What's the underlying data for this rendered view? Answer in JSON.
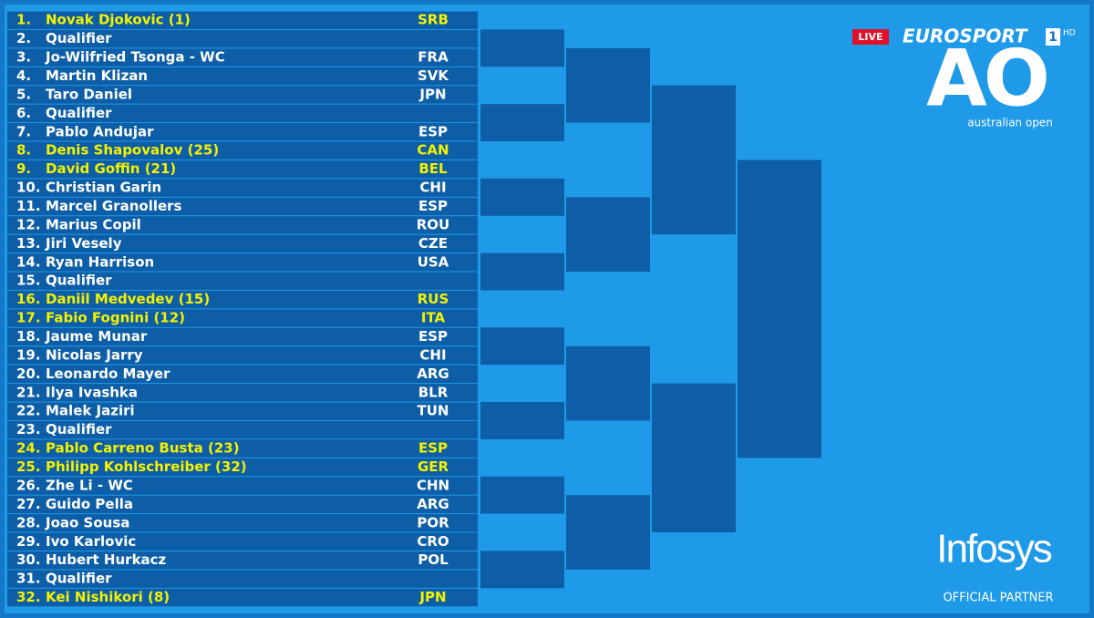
{
  "broadcast": {
    "live": "LIVE",
    "channel": "EUROSPORT",
    "channel_number": "1",
    "quality": "HD"
  },
  "logo": {
    "mark": "AO",
    "name": "australian open"
  },
  "sponsor": {
    "name": "Infosys",
    "tagline": "OFFICIAL PARTNER"
  },
  "draw": {
    "players": [
      {
        "position": "1.",
        "name": "Novak Djokovic (1)",
        "country": "SRB",
        "seeded": true
      },
      {
        "position": "2.",
        "name": "Qualifier",
        "country": null,
        "seeded": false
      },
      {
        "position": "3.",
        "name": "Jo-Wilfried Tsonga - WC",
        "country": "FRA",
        "seeded": false
      },
      {
        "position": "4.",
        "name": "Martin Klizan",
        "country": "SVK",
        "seeded": false
      },
      {
        "position": "5.",
        "name": "Taro Daniel",
        "country": "JPN",
        "seeded": false
      },
      {
        "position": "6.",
        "name": "Qualifier",
        "country": null,
        "seeded": false
      },
      {
        "position": "7.",
        "name": "Pablo Andujar",
        "country": "ESP",
        "seeded": false
      },
      {
        "position": "8.",
        "name": "Denis Shapovalov (25)",
        "country": "CAN",
        "seeded": true
      },
      {
        "position": "9.",
        "name": "David Goffin (21)",
        "country": "BEL",
        "seeded": true
      },
      {
        "position": "10.",
        "name": "Christian Garin",
        "country": "CHI",
        "seeded": false
      },
      {
        "position": "11.",
        "name": "Marcel Granollers",
        "country": "ESP",
        "seeded": false
      },
      {
        "position": "12.",
        "name": "Marius Copil",
        "country": "ROU",
        "seeded": false
      },
      {
        "position": "13.",
        "name": "Jiri Vesely",
        "country": "CZE",
        "seeded": false
      },
      {
        "position": "14.",
        "name": "Ryan Harrison",
        "country": "USA",
        "seeded": false
      },
      {
        "position": "15.",
        "name": "Qualifier",
        "country": null,
        "seeded": false
      },
      {
        "position": "16.",
        "name": "Daniil Medvedev (15)",
        "country": "RUS",
        "seeded": true
      },
      {
        "position": "17.",
        "name": "Fabio Fognini (12)",
        "country": "ITA",
        "seeded": true
      },
      {
        "position": "18.",
        "name": "Jaume Munar",
        "country": "ESP",
        "seeded": false
      },
      {
        "position": "19.",
        "name": "Nicolas Jarry",
        "country": "CHI",
        "seeded": false
      },
      {
        "position": "20.",
        "name": "Leonardo Mayer",
        "country": "ARG",
        "seeded": false
      },
      {
        "position": "21.",
        "name": "Ilya Ivashka",
        "country": "BLR",
        "seeded": false
      },
      {
        "position": "22.",
        "name": "Malek Jaziri",
        "country": "TUN",
        "seeded": false
      },
      {
        "position": "23.",
        "name": "Qualifier",
        "country": null,
        "seeded": false
      },
      {
        "position": "24.",
        "name": "Pablo Carreno Busta (23)",
        "country": "ESP",
        "seeded": true
      },
      {
        "position": "25.",
        "name": "Philipp Kohlschreiber (32)",
        "country": "GER",
        "seeded": true
      },
      {
        "position": "26.",
        "name": "Zhe Li - WC",
        "country": "CHN",
        "seeded": false
      },
      {
        "position": "27.",
        "name": "Guido Pella",
        "country": "ARG",
        "seeded": false
      },
      {
        "position": "28.",
        "name": "Joao Sousa",
        "country": "POR",
        "seeded": false
      },
      {
        "position": "29.",
        "name": "Ivo Karlovic",
        "country": "CRO",
        "seeded": false
      },
      {
        "position": "30.",
        "name": "Hubert Hurkacz",
        "country": "POL",
        "seeded": false
      },
      {
        "position": "31.",
        "name": "Qualifier",
        "country": null,
        "seeded": false
      },
      {
        "position": "32.",
        "name": "Kei Nishikori (8)",
        "country": "JPN",
        "seeded": true
      }
    ]
  }
}
